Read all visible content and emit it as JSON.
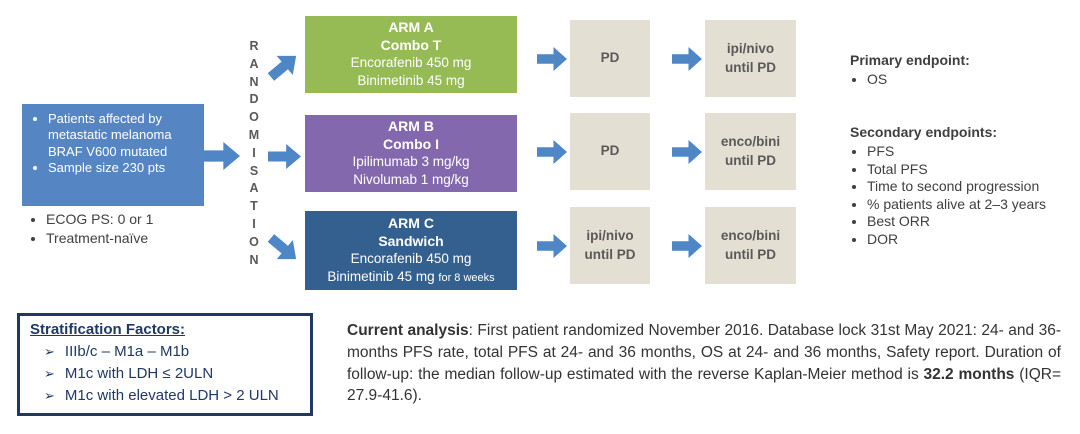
{
  "palette": {
    "patient_box_blue": "#5585c2",
    "arrow_blue": "#4e86c6",
    "arm_a_green": "#96bb55",
    "arm_b_purple": "#8468ae",
    "arm_c_blue": "#33608f",
    "stage_box_beige": "#e3e0d3",
    "stratification_navy": "#1f3864",
    "label_gray": "#595959"
  },
  "patient_box": {
    "bullets": [
      "Patients affected by metastatic melanoma BRAF V600 mutated",
      "Sample size 230 pts"
    ]
  },
  "eligibility": [
    "ECOG PS: 0 or 1",
    "Treatment-naïve"
  ],
  "randomisation": {
    "label": "RANDOMISATION",
    "stacked": "R\nA\nN\nD\nO\nM\nI\nS\nA\nT\nI\nO\nN"
  },
  "arms": [
    {
      "name": "ARM A",
      "subtitle": "Combo T",
      "drug1": "Encorafenib 450 mg",
      "drug2": "Binimetinib 45 mg",
      "drug2_note": ""
    },
    {
      "name": "ARM B",
      "subtitle": "Combo I",
      "drug1": "Ipilimumab 3 mg/kg",
      "drug2": "Nivolumab 1 mg/kg",
      "drug2_note": ""
    },
    {
      "name": "ARM C",
      "subtitle": "Sandwich",
      "drug1": "Encorafenib 450 mg",
      "drug2": "Binimetinib 45 mg",
      "drug2_note": "for 8 weeks"
    }
  ],
  "flow": [
    {
      "mid": "PD",
      "end": "ipi/nivo\nuntil PD"
    },
    {
      "mid": "PD",
      "end": "enco/bini\nuntil PD"
    },
    {
      "mid": "ipi/nivo\nuntil PD",
      "end": "enco/bini\nuntil PD"
    }
  ],
  "endpoints": {
    "primary": {
      "heading": "Primary endpoint:",
      "items": [
        "OS"
      ]
    },
    "secondary": {
      "heading": "Secondary endpoints:",
      "items": [
        "PFS",
        "Total PFS",
        "Time to second progression",
        "% patients alive at 2–3 years",
        "Best ORR",
        "DOR"
      ]
    }
  },
  "stratification": {
    "heading": "Stratification Factors:",
    "marker": "➢",
    "items": [
      "IIIb/c – M1a – M1b",
      "M1c with LDH ≤ 2ULN",
      "M1c with elevated LDH > 2 ULN"
    ]
  },
  "analysis": {
    "segments": [
      {
        "text": "Current analysis",
        "bold": true
      },
      {
        "text": ": First patient randomized November 2016. Database lock 31st May 2021: 24- and 36-months PFS rate, total PFS at 24- and 36 months, OS at 24- and 36 months, Safety report. Duration of follow-up: the median follow-up estimated with the reverse Kaplan-Meier method is ",
        "bold": false
      },
      {
        "text": "32.2 months",
        "bold": true
      },
      {
        "text": " (IQR= 27.9-41.6).",
        "bold": false
      }
    ]
  }
}
